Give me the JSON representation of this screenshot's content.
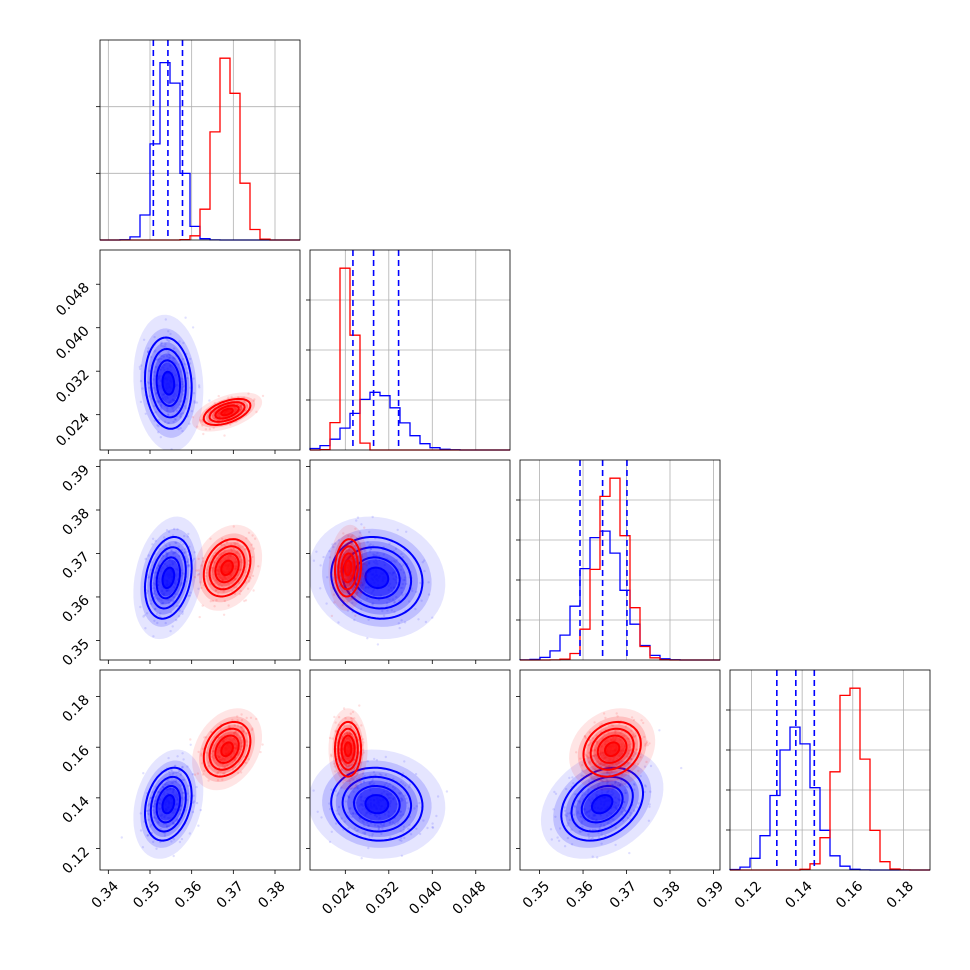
{
  "chart_data": {
    "type": "corner",
    "grid": true,
    "parameters": [
      {
        "range": [
          0.338,
          0.386
        ],
        "ticks": [
          0.34,
          0.35,
          0.36,
          0.37,
          0.38
        ],
        "tick_labels": [
          "0.34",
          "0.35",
          "0.36",
          "0.37",
          "0.38"
        ]
      },
      {
        "range": [
          0.0175,
          0.0543
        ],
        "ticks": [
          0.024,
          0.032,
          0.04,
          0.048
        ],
        "tick_labels": [
          "0.024",
          "0.032",
          "0.040",
          "0.048"
        ]
      },
      {
        "range": [
          0.3455,
          0.3915
        ],
        "ticks": [
          0.35,
          0.36,
          0.37,
          0.38,
          0.39
        ],
        "tick_labels": [
          "0.35",
          "0.36",
          "0.37",
          "0.38",
          "0.39"
        ]
      },
      {
        "range": [
          0.1115,
          0.1905
        ],
        "ticks": [
          0.12,
          0.14,
          0.16,
          0.18
        ],
        "tick_labels": [
          "0.12",
          "0.14",
          "0.16",
          "0.18"
        ]
      }
    ],
    "series": [
      {
        "color": "#0000ff",
        "mean": [
          0.3544,
          0.0298,
          0.3644,
          0.1375
        ],
        "std": [
          0.0028,
          0.0042,
          0.0047,
          0.0072
        ],
        "correlation": [
          [
            1.0,
            -0.1,
            0.25,
            0.25
          ],
          [
            -0.1,
            1.0,
            -0.1,
            -0.05
          ],
          [
            0.25,
            -0.1,
            1.0,
            0.3
          ],
          [
            0.25,
            -0.05,
            0.3,
            1.0
          ]
        ],
        "quantiles_16_50_84": [
          [
            0.3508,
            0.3543,
            0.3578
          ],
          [
            0.0254,
            0.0292,
            0.0338
          ],
          [
            0.3593,
            0.3645,
            0.3701
          ],
          [
            0.13,
            0.1375,
            0.1448
          ]
        ]
      },
      {
        "color": "#ff0000",
        "mean": [
          0.3685,
          0.0245,
          0.3667,
          0.1592
        ],
        "std": [
          0.0028,
          0.0012,
          0.0033,
          0.0054
        ],
        "correlation": [
          [
            1.0,
            0.5,
            0.25,
            0.3
          ],
          [
            0.5,
            1.0,
            0.1,
            0.0
          ],
          [
            0.25,
            0.1,
            1.0,
            0.2
          ],
          [
            0.3,
            0.0,
            0.2,
            1.0
          ]
        ]
      }
    ]
  }
}
